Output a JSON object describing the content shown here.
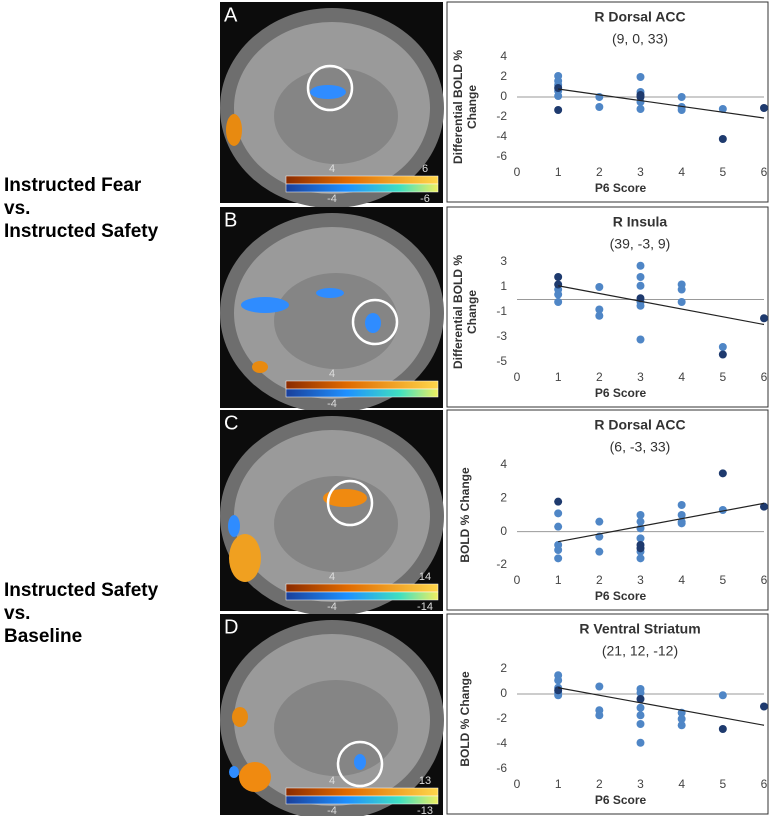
{
  "group_labels": [
    [
      "Instructed Fear",
      "vs.",
      "Instructed Safety"
    ],
    [
      "Instructed Safety",
      "vs.",
      "Baseline"
    ]
  ],
  "panels": [
    {
      "letter": "A",
      "colorbar_top": [
        4,
        6
      ],
      "colorbar_bottom": [
        -4,
        -6
      ]
    },
    {
      "letter": "B",
      "colorbar_top": [
        4
      ],
      "colorbar_bottom": [
        -4
      ]
    },
    {
      "letter": "C",
      "colorbar_top": [
        4,
        14
      ],
      "colorbar_bottom": [
        -4,
        -14
      ]
    },
    {
      "letter": "D",
      "colorbar_top": [
        4,
        13
      ],
      "colorbar_bottom": [
        -4,
        -13
      ]
    }
  ],
  "chart_data": [
    {
      "type": "scatter",
      "title": "R Dorsal ACC",
      "subtitle": "(9, 0, 33)",
      "xlabel": "P6 Score",
      "ylabel": [
        "Differential BOLD %",
        "Change"
      ],
      "xlim": [
        0,
        6
      ],
      "xticks": [
        0,
        1,
        2,
        3,
        4,
        5,
        6
      ],
      "ylim": [
        -6,
        4
      ],
      "yticks": [
        -6,
        -4,
        -2,
        0,
        2,
        4
      ],
      "series": [
        {
          "color": "#4f86c6",
          "x": [
            1,
            1,
            1,
            1,
            1,
            2,
            2,
            3,
            3,
            3,
            3,
            4,
            4,
            4,
            5
          ],
          "values": [
            2.1,
            1.6,
            1.2,
            0.6,
            0.1,
            0,
            -1,
            2,
            0.5,
            -0.5,
            -1.2,
            0,
            -1,
            -1.3,
            -1.2
          ]
        },
        {
          "color": "#1e3a6e",
          "x": [
            1,
            1,
            3,
            3,
            5,
            6
          ],
          "values": [
            0.9,
            -1.3,
            0.2,
            0,
            -4.2,
            -1.1
          ]
        }
      ],
      "trendline": {
        "x": [
          1,
          6
        ],
        "y": [
          0.8,
          -2.1
        ]
      }
    },
    {
      "type": "scatter",
      "title": "R Insula",
      "subtitle": "(39, -3, 9)",
      "xlabel": "P6 Score",
      "ylabel": [
        "Differential BOLD %",
        "Change"
      ],
      "xlim": [
        0,
        6
      ],
      "xticks": [
        0,
        1,
        2,
        3,
        4,
        5,
        6
      ],
      "ylim": [
        -5,
        3
      ],
      "yticks": [
        -5,
        -3,
        -1,
        1,
        3
      ],
      "series": [
        {
          "color": "#4f86c6",
          "x": [
            1,
            1,
            1,
            2,
            2,
            2,
            3,
            3,
            3,
            3,
            3,
            3,
            4,
            4,
            4,
            5
          ],
          "values": [
            0.8,
            0.4,
            -0.2,
            1,
            -0.8,
            -1.3,
            2.7,
            1.8,
            1.1,
            -0.2,
            -0.5,
            -3.2,
            1.2,
            0.8,
            -0.2,
            -3.8
          ]
        },
        {
          "color": "#1e3a6e",
          "x": [
            1,
            1,
            3,
            5,
            6
          ],
          "values": [
            1.8,
            1.2,
            0.1,
            -4.4,
            -1.5
          ]
        }
      ],
      "trendline": {
        "x": [
          1,
          6
        ],
        "y": [
          1.1,
          -2
        ]
      }
    },
    {
      "type": "scatter",
      "title": "R Dorsal  ACC",
      "subtitle": "(6, -3, 33)",
      "xlabel": "P6 Score",
      "ylabel": [
        "BOLD % Change"
      ],
      "xlim": [
        0,
        6
      ],
      "xticks": [
        0,
        1,
        2,
        3,
        4,
        5,
        6
      ],
      "ylim": [
        -2,
        4
      ],
      "yticks": [
        -2,
        0,
        2,
        4
      ],
      "series": [
        {
          "color": "#4f86c6",
          "x": [
            1,
            1,
            1,
            1,
            1,
            2,
            2,
            2,
            3,
            3,
            3,
            3,
            3,
            3,
            4,
            4,
            4,
            4,
            5
          ],
          "values": [
            1.1,
            0.3,
            -0.8,
            -1.1,
            -1.6,
            0.6,
            -0.3,
            -1.2,
            1,
            0.6,
            0.2,
            -0.4,
            -1.2,
            -1.6,
            1.6,
            1,
            0.6,
            0.5,
            1.3
          ]
        },
        {
          "color": "#1e3a6e",
          "x": [
            1,
            3,
            3,
            5,
            6
          ],
          "values": [
            1.8,
            -0.8,
            -1,
            3.5,
            1.5
          ]
        }
      ],
      "trendline": {
        "x": [
          1,
          6
        ],
        "y": [
          -0.6,
          1.7
        ]
      }
    },
    {
      "type": "scatter",
      "title": "R Ventral Striatum",
      "subtitle": "(21, 12, -12)",
      "xlabel": "P6 Score",
      "ylabel": [
        "BOLD % Change"
      ],
      "xlim": [
        0,
        6
      ],
      "xticks": [
        0,
        1,
        2,
        3,
        4,
        5,
        6
      ],
      "ylim": [
        -6,
        2
      ],
      "yticks": [
        -6,
        -4,
        -2,
        0,
        2
      ],
      "series": [
        {
          "color": "#4f86c6",
          "x": [
            1,
            1,
            1,
            1,
            1,
            2,
            2,
            2,
            3,
            3,
            3,
            3,
            3,
            3,
            4,
            4,
            4,
            5
          ],
          "values": [
            1.5,
            1.1,
            0.5,
            0.1,
            -0.1,
            0.6,
            -1.3,
            -1.7,
            0.4,
            0.1,
            -1.1,
            -1.7,
            -2.4,
            -3.9,
            -1.5,
            -2,
            -2.5,
            -0.1
          ]
        },
        {
          "color": "#1e3a6e",
          "x": [
            1,
            3,
            5,
            6
          ],
          "values": [
            0.3,
            -0.4,
            -2.8,
            -1
          ]
        }
      ],
      "trendline": {
        "x": [
          1,
          6
        ],
        "y": [
          0.5,
          -2.5
        ]
      }
    }
  ]
}
